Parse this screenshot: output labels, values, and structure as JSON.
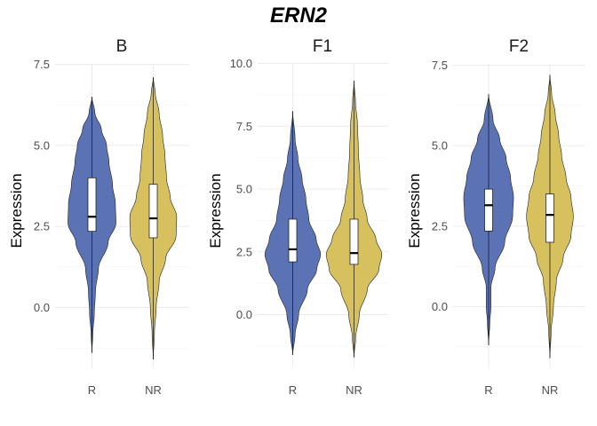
{
  "chart_data": {
    "type": "violin",
    "title": "ERN2",
    "colors": {
      "R": "#5b73b5",
      "NR": "#d7c05e"
    },
    "panels": [
      {
        "title": "B",
        "ylabel": "Expression",
        "categories": [
          "R",
          "NR"
        ],
        "ylim": [
          -1.7,
          7.5
        ],
        "yticks": [
          0.0,
          2.5,
          5.0,
          7.5
        ],
        "ytick_labels": [
          "0.0",
          "2.5",
          "5.0",
          "7.5"
        ],
        "groups": [
          {
            "name": "R",
            "min": -1.4,
            "max": 6.5,
            "q1": 2.35,
            "median": 2.8,
            "q3": 4.0,
            "density": [
              [
                -1.4,
                0.0
              ],
              [
                -0.8,
                0.03
              ],
              [
                -0.2,
                0.08
              ],
              [
                0.5,
                0.12
              ],
              [
                1.2,
                0.22
              ],
              [
                2.0,
                0.55
              ],
              [
                2.6,
                0.82
              ],
              [
                3.2,
                0.8
              ],
              [
                3.8,
                0.7
              ],
              [
                4.5,
                0.58
              ],
              [
                5.0,
                0.5
              ],
              [
                5.5,
                0.32
              ],
              [
                6.0,
                0.1
              ],
              [
                6.5,
                0.0
              ]
            ]
          },
          {
            "name": "NR",
            "min": -1.6,
            "max": 7.1,
            "q1": 2.15,
            "median": 2.75,
            "q3": 3.8,
            "density": [
              [
                -1.6,
                0.0
              ],
              [
                -0.8,
                0.04
              ],
              [
                0.0,
                0.1
              ],
              [
                0.8,
                0.2
              ],
              [
                1.5,
                0.42
              ],
              [
                2.2,
                0.78
              ],
              [
                2.8,
                0.8
              ],
              [
                3.4,
                0.58
              ],
              [
                4.0,
                0.45
              ],
              [
                4.7,
                0.4
              ],
              [
                5.3,
                0.32
              ],
              [
                6.0,
                0.2
              ],
              [
                6.6,
                0.07
              ],
              [
                7.1,
                0.0
              ]
            ]
          }
        ]
      },
      {
        "title": "F1",
        "ylabel": "Expression",
        "categories": [
          "R",
          "NR"
        ],
        "ylim": [
          -1.7,
          10.0
        ],
        "yticks": [
          0.0,
          2.5,
          5.0,
          7.5,
          10.0
        ],
        "ytick_labels": [
          "0.0",
          "2.5",
          "5.0",
          "7.5",
          "10.0"
        ],
        "groups": [
          {
            "name": "R",
            "min": -1.6,
            "max": 8.1,
            "q1": 2.1,
            "median": 2.6,
            "q3": 3.8,
            "density": [
              [
                -1.6,
                0.0
              ],
              [
                -0.8,
                0.08
              ],
              [
                0.0,
                0.2
              ],
              [
                1.0,
                0.5
              ],
              [
                1.8,
                0.82
              ],
              [
                2.4,
                0.95
              ],
              [
                3.0,
                0.8
              ],
              [
                3.8,
                0.55
              ],
              [
                4.6,
                0.45
              ],
              [
                5.4,
                0.32
              ],
              [
                6.2,
                0.18
              ],
              [
                7.0,
                0.08
              ],
              [
                8.1,
                0.0
              ]
            ]
          },
          {
            "name": "NR",
            "min": -1.7,
            "max": 9.3,
            "q1": 2.0,
            "median": 2.45,
            "q3": 3.8,
            "density": [
              [
                -1.7,
                0.0
              ],
              [
                -0.9,
                0.06
              ],
              [
                0.0,
                0.18
              ],
              [
                1.0,
                0.45
              ],
              [
                1.8,
                0.85
              ],
              [
                2.4,
                0.95
              ],
              [
                3.0,
                0.75
              ],
              [
                3.8,
                0.45
              ],
              [
                4.6,
                0.3
              ],
              [
                5.5,
                0.2
              ],
              [
                6.5,
                0.15
              ],
              [
                7.5,
                0.12
              ],
              [
                8.5,
                0.05
              ],
              [
                9.3,
                0.0
              ]
            ]
          }
        ]
      },
      {
        "title": "F2",
        "ylabel": "Expression",
        "categories": [
          "R",
          "NR"
        ],
        "ylim": [
          -1.7,
          7.5
        ],
        "yticks": [
          0.0,
          2.5,
          5.0,
          7.5
        ],
        "ytick_labels": [
          "0.0",
          "2.5",
          "5.0",
          "7.5"
        ],
        "groups": [
          {
            "name": "R",
            "min": -1.2,
            "max": 6.6,
            "q1": 2.35,
            "median": 3.15,
            "q3": 3.65,
            "density": [
              [
                -1.2,
                0.0
              ],
              [
                -0.5,
                0.04
              ],
              [
                0.0,
                0.08
              ],
              [
                0.6,
                0.08
              ],
              [
                1.2,
                0.22
              ],
              [
                2.0,
                0.55
              ],
              [
                2.8,
                0.82
              ],
              [
                3.4,
                0.85
              ],
              [
                4.0,
                0.75
              ],
              [
                4.6,
                0.6
              ],
              [
                5.2,
                0.38
              ],
              [
                5.8,
                0.15
              ],
              [
                6.6,
                0.0
              ]
            ]
          },
          {
            "name": "NR",
            "min": -1.6,
            "max": 7.2,
            "q1": 2.0,
            "median": 2.85,
            "q3": 3.5,
            "density": [
              [
                -1.6,
                0.0
              ],
              [
                -0.8,
                0.04
              ],
              [
                0.0,
                0.12
              ],
              [
                0.8,
                0.22
              ],
              [
                1.5,
                0.45
              ],
              [
                2.2,
                0.72
              ],
              [
                2.8,
                0.8
              ],
              [
                3.4,
                0.72
              ],
              [
                4.0,
                0.55
              ],
              [
                4.7,
                0.4
              ],
              [
                5.3,
                0.3
              ],
              [
                6.0,
                0.18
              ],
              [
                6.6,
                0.06
              ],
              [
                7.2,
                0.0
              ]
            ]
          }
        ]
      }
    ]
  }
}
